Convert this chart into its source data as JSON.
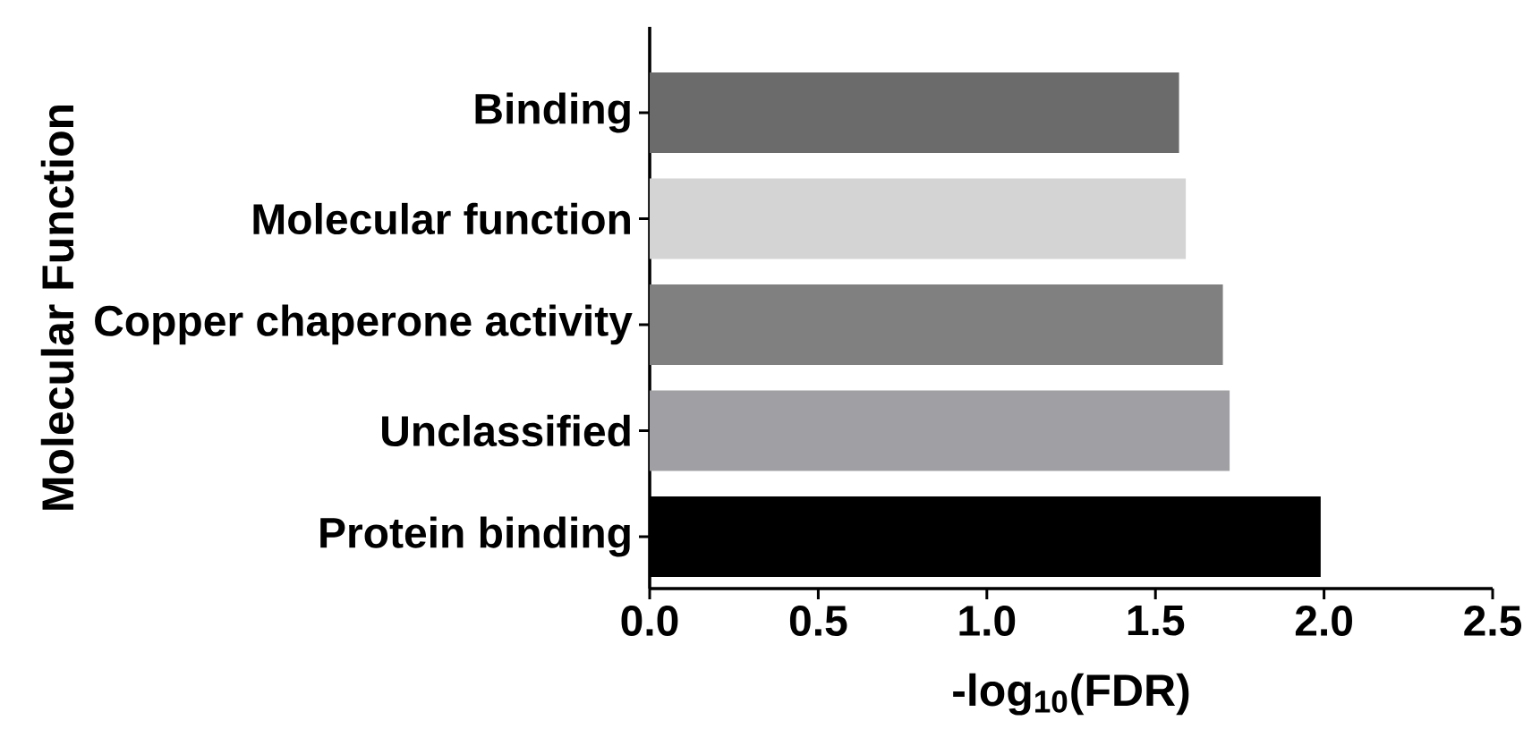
{
  "chart_data": {
    "type": "bar",
    "orientation": "horizontal",
    "xlabel": "-log$_{10}$(FDR)",
    "ylabel": "Molecular Function",
    "categories": [
      "Binding",
      "Molecular function",
      "Copper chaperone activity",
      "Unclassified",
      "Protein binding"
    ],
    "values": [
      1.57,
      1.59,
      1.7,
      1.72,
      1.99
    ],
    "colors": [
      "#6b6b6b",
      "#d4d4d4",
      "#808080",
      "#a0a0a4",
      "#000000"
    ],
    "xlim": [
      0,
      2.5
    ],
    "xticks": [
      {
        "value": 0,
        "label": "0.0"
      },
      0.5,
      {
        "value": 1,
        "label": "1.0"
      },
      1.5,
      {
        "value": 2,
        "label": "2.0"
      },
      2.5
    ],
    "grid": false
  }
}
